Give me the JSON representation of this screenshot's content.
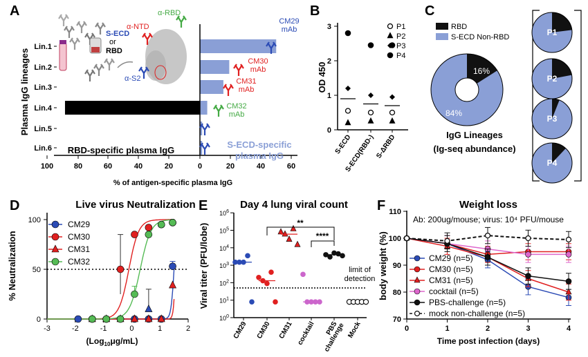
{
  "chart_data": [
    {
      "panel": "A",
      "type": "bar",
      "ylabel": "Plasma IgG lineages",
      "xlabel": "% of antigen-specific plasma IgG",
      "categories": [
        "Lin.1",
        "Lin.2",
        "Lin.3",
        "Lin.4",
        "Lin.5",
        "Lin.6"
      ],
      "series": [
        {
          "name": "RBD-specific plasma IgG",
          "color": "#000000",
          "values": [
            0,
            0,
            0,
            92,
            0,
            0
          ]
        },
        {
          "name": "S-ECD-specific plasma IgG",
          "color": "#8a9fd6",
          "values": [
            52,
            20,
            16,
            5,
            1.5,
            1.5
          ]
        }
      ],
      "xticks": [
        "100",
        "80",
        "60",
        "40",
        "20",
        "0",
        "20",
        "40",
        "60"
      ],
      "mab_labels": [
        "CM29\nmAb",
        "CM30\nmAb",
        "CM31\nmAb",
        "CM32\nmAb"
      ],
      "inset_labels": [
        "S-ECD",
        "or",
        "RBD",
        "α-NTD",
        "α-RBD",
        "α-S2"
      ]
    },
    {
      "panel": "B",
      "type": "scatter",
      "ylabel": "OD 450",
      "categories": [
        "S-ECD",
        "S-ECD(RBD-)",
        "S-ΔRBD"
      ],
      "ylim": [
        0,
        3
      ],
      "yticks": [
        "0",
        "1",
        "2",
        "3"
      ],
      "series": [
        {
          "name": "P1",
          "marker": "open-circle",
          "values": [
            0.55,
            0.5,
            0.5
          ]
        },
        {
          "name": "P2",
          "marker": "triangle",
          "values": [
            0.2,
            0.25,
            0.25
          ]
        },
        {
          "name": "P3",
          "marker": "diamond",
          "values": [
            1.2,
            1.0,
            0.95
          ]
        },
        {
          "name": "P4",
          "marker": "circle",
          "values": [
            2.8,
            2.45,
            2.45
          ]
        }
      ],
      "means": [
        0.9,
        0.75,
        0.7
      ]
    },
    {
      "panel": "C",
      "type": "pie",
      "title": "IgG Lineages (Ig-seq abundance)",
      "legend": [
        {
          "name": "RBD",
          "color": "#111111"
        },
        {
          "name": "S-ECD Non-RBD",
          "color": "#8a9fd6"
        }
      ],
      "main": {
        "values": [
          16,
          84
        ],
        "labels": [
          "16%",
          "84%"
        ]
      },
      "small": [
        {
          "label": "P1",
          "rbd": 23
        },
        {
          "label": "P2",
          "rbd": 22
        },
        {
          "label": "P3",
          "rbd": 6
        },
        {
          "label": "P4",
          "rbd": 12
        }
      ]
    },
    {
      "panel": "D",
      "type": "line",
      "title": "Live virus Neutralization",
      "xlabel": "(Log10μg/mL)",
      "ylabel": "% Neutralization",
      "xlim": [
        -3,
        2
      ],
      "ylim": [
        0,
        100
      ],
      "xticks": [
        "-3",
        "-2",
        "-1",
        "0",
        "1",
        "2"
      ],
      "yticks": [
        "0",
        "50",
        "100"
      ],
      "threshold": 50,
      "series": [
        {
          "name": "CM29",
          "color": "#2b4bb5",
          "marker": "circle",
          "x": [
            -1.9,
            -1.4,
            -0.9,
            -0.4,
            0.1,
            0.6,
            1.05,
            1.45
          ],
          "y": [
            0,
            0,
            0,
            0,
            0,
            0,
            0,
            53
          ],
          "err": [
            0,
            0,
            0,
            0,
            0,
            0,
            0,
            5
          ],
          "fit": {
            "ec50": 1.5,
            "hill": 8
          }
        },
        {
          "name": "CM30",
          "color": "#e02020",
          "marker": "circle",
          "x": [
            -1.4,
            -0.9,
            -0.4,
            0.1,
            0.6,
            1.05,
            1.45
          ],
          "y": [
            0,
            0,
            50,
            85,
            92,
            95,
            97
          ],
          "fit": {
            "ec50": -0.1,
            "hill": 2.5
          }
        },
        {
          "name": "CM31",
          "color": "#e02020",
          "marker": "triangle",
          "x": [
            -1.4,
            -0.9,
            -0.4,
            0.1,
            0.6,
            1.05,
            1.45
          ],
          "y": [
            0,
            0,
            0,
            0,
            0,
            0,
            34
          ],
          "fit": {
            "ec50": 1.55,
            "hill": 12
          }
        },
        {
          "name": "CM32",
          "color": "#55bb55",
          "marker": "circle",
          "x": [
            -1.4,
            -0.9,
            -0.4,
            0.1,
            0.6,
            1.05,
            1.45
          ],
          "y": [
            0,
            0,
            0,
            25,
            85,
            95,
            97
          ],
          "err": [
            0,
            0,
            0,
            8,
            0,
            0,
            0
          ],
          "fit": {
            "ec50": 0.3,
            "hill": 2.3
          }
        }
      ],
      "extra_points": [
        {
          "x": 0.6,
          "y": 10,
          "color": "#2b4bb5"
        }
      ],
      "extra_errs": [
        {
          "x": -0.4,
          "y": 25,
          "hi": 85,
          "color": "#333333"
        },
        {
          "x": 0.6,
          "y": 10,
          "hi": 30,
          "color": "#333333"
        }
      ]
    },
    {
      "panel": "E",
      "type": "scatter",
      "title": "Day 4 lung viral count",
      "ylabel": "Viral titer (PFU/lobe)",
      "yscale": "log",
      "ylim": [
        1,
        1000000
      ],
      "yticks": [
        "10^0",
        "10^1",
        "10^2",
        "10^3",
        "10^4",
        "10^5",
        "10^6"
      ],
      "categories": [
        "CM29",
        "CM30",
        "CM31",
        "cocktail",
        "PBS\nchallenge",
        "Mock"
      ],
      "series": [
        {
          "name": "CM29",
          "color": "#2b4bb5",
          "values": [
            1500,
            1500,
            1500,
            3500,
            8
          ]
        },
        {
          "name": "CM30",
          "color": "#e02020",
          "values": [
            200,
            130,
            90,
            400,
            8
          ]
        },
        {
          "name": "CM31",
          "color": "#e02020",
          "marker": "triangle",
          "values": [
            80000,
            60000,
            30000,
            120000,
            15000
          ]
        },
        {
          "name": "cocktail",
          "color": "#cc66cc",
          "values": [
            300,
            8,
            8,
            8,
            8
          ]
        },
        {
          "name": "PBS",
          "color": "#111111",
          "values": [
            4000,
            3000,
            5000,
            4500,
            3500
          ]
        },
        {
          "name": "Mock",
          "color": "#111111",
          "open": true,
          "values": [
            8,
            8,
            8,
            8,
            8
          ]
        }
      ],
      "limit_of_detection": 50,
      "limit_label": "limit of\ndetection",
      "sig": [
        "**",
        "****"
      ]
    },
    {
      "panel": "F",
      "type": "line",
      "title": "Weight loss",
      "subtitle": "Ab: 200ug/mouse; virus: 10⁴ PFU/mouse",
      "xlabel": "Time post infection (days)",
      "ylabel": "body weight (%)",
      "xlim": [
        0,
        4
      ],
      "ylim": [
        70,
        110
      ],
      "xticks": [
        "0",
        "1",
        "2",
        "3",
        "4"
      ],
      "yticks": [
        "70",
        "80",
        "90",
        "100",
        "110"
      ],
      "series": [
        {
          "name": "CM29 (n=5)",
          "color": "#2b4bb5",
          "marker": "circle",
          "x": [
            0,
            1,
            2,
            3,
            4
          ],
          "y": [
            100,
            98,
            92,
            82,
            78
          ]
        },
        {
          "name": "CM30 (n=5)",
          "color": "#e02020",
          "marker": "circle",
          "x": [
            0,
            1,
            2,
            3,
            4
          ],
          "y": [
            100,
            98,
            94,
            95,
            95
          ]
        },
        {
          "name": "CM31 (n=5)",
          "color": "#e02020",
          "marker": "triangle",
          "x": [
            0,
            1,
            2,
            3,
            4
          ],
          "y": [
            100,
            97,
            93,
            85,
            80
          ]
        },
        {
          "name": "cocktail (n=5)",
          "color": "#dd66cc",
          "marker": "circle",
          "x": [
            0,
            1,
            2,
            3,
            4
          ],
          "y": [
            100,
            98,
            96,
            94,
            94
          ]
        },
        {
          "name": "PBS-challenge (n=5)",
          "color": "#111111",
          "marker": "circle",
          "x": [
            0,
            1,
            2,
            3,
            4
          ],
          "y": [
            100,
            98,
            93,
            86,
            84
          ]
        },
        {
          "name": "mock non-challenge (n=5)",
          "color": "#111111",
          "marker": "open-circle",
          "dashed": true,
          "x": [
            0,
            1,
            2,
            3,
            4
          ],
          "y": [
            100,
            99,
            101,
            100,
            99.5
          ]
        }
      ]
    }
  ]
}
